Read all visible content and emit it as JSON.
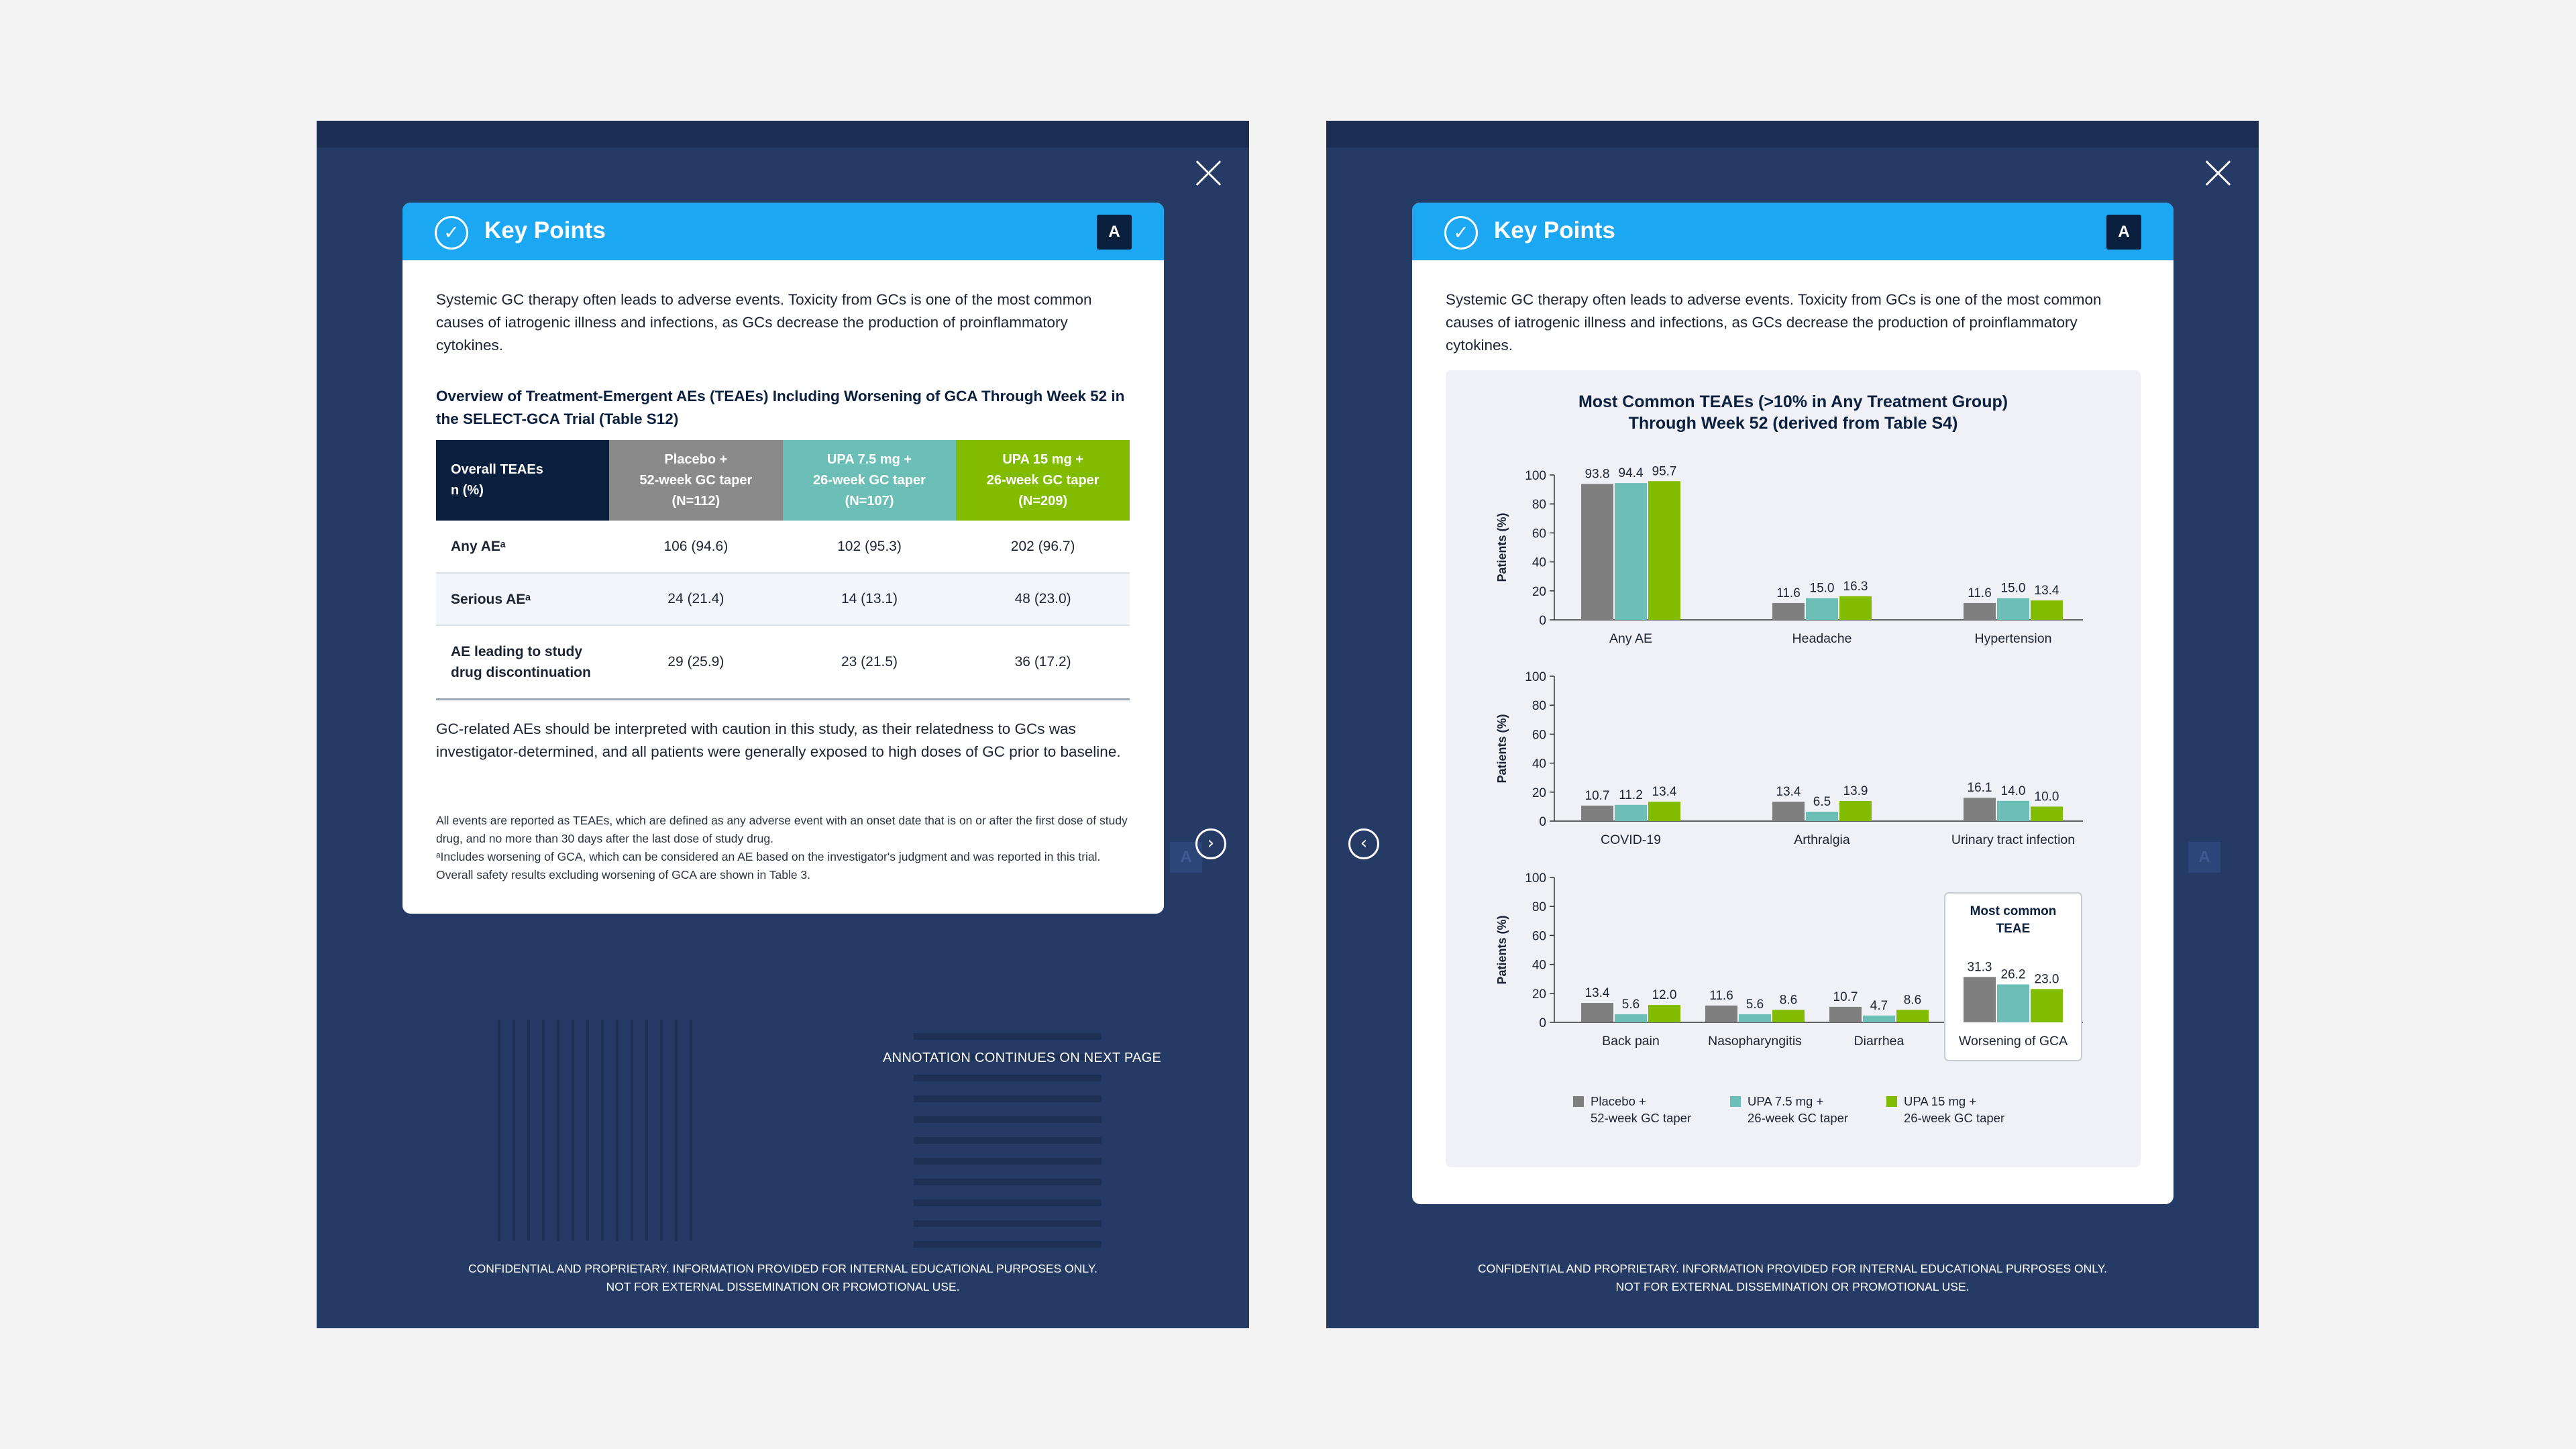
{
  "common": {
    "card_title": "Key Points",
    "badge": "A",
    "check_icon": "✓",
    "intro": "Systemic GC therapy often leads to adverse events. Toxicity from GCs is one of the most common causes of iatrogenic illness and infections, as GCs decrease the production of proinflammatory cytokines.",
    "footer_line1": "CONFIDENTIAL AND PROPRIETARY. INFORMATION PROVIDED FOR INTERNAL EDUCATIONAL PURPOSES ONLY.",
    "footer_line2": "NOT FOR EXTERNAL DISSEMINATION OR PROMOTIONAL USE.",
    "ghost_badge": "A"
  },
  "left": {
    "next_arrow": "›",
    "continue_note": "ANNOTATION CONTINUES ON NEXT PAGE",
    "table_title": "Overview of Treatment-Emergent AEs (TEAEs) Including Worsening of GCA Through Week 52 in the SELECT-GCA Trial (Table S12)",
    "headers": {
      "h0": [
        "Overall TEAEs",
        "n (%)"
      ],
      "h1": [
        "Placebo +",
        "52-week GC taper",
        "(N=112)"
      ],
      "h2": [
        "UPA 7.5 mg +",
        "26-week GC taper",
        "(N=107)"
      ],
      "h3": [
        "UPA 15 mg +",
        "26-week GC taper",
        "(N=209)"
      ]
    },
    "rows": [
      {
        "label": [
          "Any AEᵃ"
        ],
        "c1": "106 (94.6)",
        "c2": "102 (95.3)",
        "c3": "202 (96.7)"
      },
      {
        "label": [
          "Serious AEᵃ"
        ],
        "c1": "24 (21.4)",
        "c2": "14 (13.1)",
        "c3": "48 (23.0)"
      },
      {
        "label": [
          "AE leading to study",
          "drug discontinuation"
        ],
        "c1": "29 (25.9)",
        "c2": "23 (21.5)",
        "c3": "36 (17.2)"
      }
    ],
    "body2": "GC-related AEs should be interpreted with caution in this study, as their relatedness to GCs was investigator-determined, and all patients were generally exposed to high doses of GC prior to baseline.",
    "footnote1": "All events are reported as TEAEs, which are defined as any adverse event with an onset date that is on or after the first dose of study drug, and no more than 30 days after the last dose of study drug.",
    "footnote2": "ᵃIncludes worsening of GCA, which can be considered an AE based on the investigator's judgment and was reported in this trial. Overall safety results excluding worsening of GCA are shown in Table 3."
  },
  "right": {
    "prev_arrow": "‹",
    "chart_title_line1": "Most Common TEAEs (>10% in Any Treatment Group)",
    "chart_title_line2": "Through Week 52 (derived from Table S4)",
    "callout_line1": "Most common",
    "callout_line2": "TEAE",
    "legend": [
      {
        "line1": "Placebo +",
        "line2": "52-week GC taper",
        "color": "#7f7f7f"
      },
      {
        "line1": "UPA 7.5 mg +",
        "line2": "26-week GC taper",
        "color": "#6cbfb6"
      },
      {
        "line1": "UPA 15 mg +",
        "line2": "26-week GC taper",
        "color": "#82bc00"
      }
    ]
  },
  "chart_data": {
    "type": "bar",
    "title": "Most Common TEAEs (>10% in Any Treatment Group) Through Week 52 (derived from Table S4)",
    "ylabel": "Patients (%)",
    "ylim": [
      0,
      100
    ],
    "yticks": [
      0,
      20,
      40,
      60,
      80,
      100
    ],
    "series": [
      {
        "name": "Placebo + 52-week GC taper",
        "color": "#7f7f7f"
      },
      {
        "name": "UPA 7.5 mg + 26-week GC taper",
        "color": "#6cbfb6"
      },
      {
        "name": "UPA 15 mg + 26-week GC taper",
        "color": "#82bc00"
      }
    ],
    "panels": [
      {
        "categories": [
          "Any AE",
          "Headache",
          "Hypertension"
        ],
        "values": [
          [
            93.8,
            94.4,
            95.7
          ],
          [
            11.6,
            15.0,
            16.3
          ],
          [
            11.6,
            15.0,
            13.4
          ]
        ]
      },
      {
        "categories": [
          "COVID-19",
          "Arthralgia",
          "Urinary tract infection"
        ],
        "values": [
          [
            10.7,
            11.2,
            13.4
          ],
          [
            13.4,
            6.5,
            13.9
          ],
          [
            16.1,
            14.0,
            10.0
          ]
        ]
      },
      {
        "categories": [
          "Back pain",
          "Nasopharyngitis",
          "Diarrhea",
          "Worsening of GCA"
        ],
        "values": [
          [
            13.4,
            5.6,
            12.0
          ],
          [
            11.6,
            5.6,
            8.6
          ],
          [
            10.7,
            4.7,
            8.6
          ],
          [
            31.3,
            26.2,
            23.0
          ]
        ]
      }
    ],
    "highlight_category": "Worsening of GCA"
  }
}
